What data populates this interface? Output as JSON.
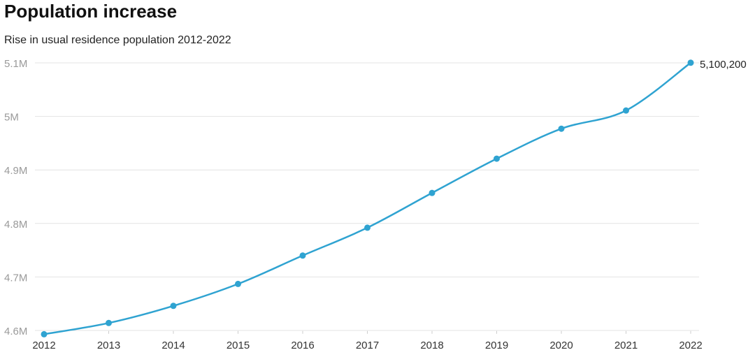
{
  "chart_data": {
    "type": "line",
    "title": "Population increase",
    "subtitle": "Rise in usual residence population 2012-2022",
    "x": [
      2012,
      2013,
      2014,
      2015,
      2016,
      2017,
      2018,
      2019,
      2020,
      2021,
      2022
    ],
    "xlim": [
      2012,
      2022
    ],
    "xticks": [
      2012,
      2013,
      2014,
      2015,
      2016,
      2017,
      2018,
      2019,
      2020,
      2021,
      2022
    ],
    "values": [
      4593000,
      4614000,
      4646000,
      4687000,
      4740000,
      4792000,
      4857000,
      4921000,
      4977000,
      5011000,
      5100200
    ],
    "value_labels": [
      null,
      null,
      null,
      null,
      null,
      null,
      null,
      null,
      null,
      null,
      "5,100,200"
    ],
    "color": "#2fa3d1",
    "ylim": [
      4590000,
      5110000
    ],
    "yticks": [
      {
        "value": 4600000,
        "label": "4.6M"
      },
      {
        "value": 4700000,
        "label": "4.7M"
      },
      {
        "value": 4800000,
        "label": "4.8M"
      },
      {
        "value": 4900000,
        "label": "4.9M"
      },
      {
        "value": 5000000,
        "label": "5M"
      },
      {
        "value": 5100000,
        "label": "5.1M"
      }
    ],
    "grid": true
  }
}
